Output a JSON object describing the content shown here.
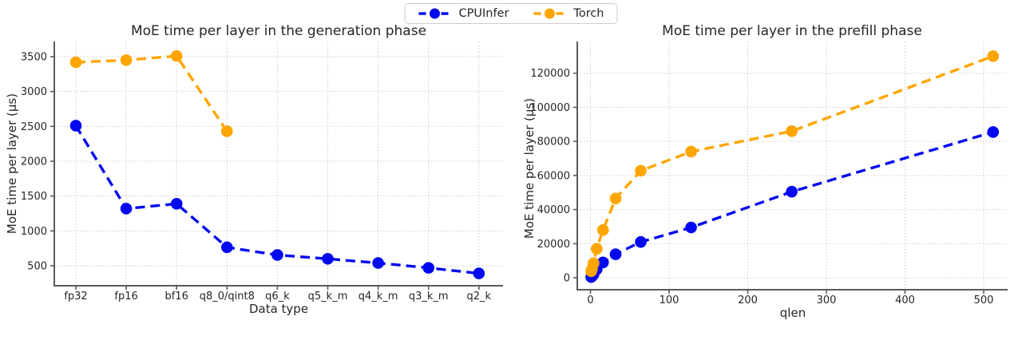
{
  "figure": {
    "background": "#ffffff",
    "text_color": "#262626",
    "grid_color": "#c9c9c9",
    "spine_color": "#5a5a5a"
  },
  "legend": {
    "position": "figure-top-center",
    "orientation": "horizontal"
  },
  "chart_data": [
    {
      "type": "line",
      "title": "MoE time per layer in the generation phase",
      "xlabel": "Data type",
      "ylabel": "MoE time per layer (µs)",
      "line_style": "dashed",
      "marker": "circle",
      "grid": "dotted",
      "categories": [
        "fp32",
        "fp16",
        "bf16",
        "q8_0/qint8",
        "q6_k",
        "q5_k_m",
        "q4_k_m",
        "q3_k_m",
        "q2_k"
      ],
      "yticks": [
        500,
        1000,
        1500,
        2000,
        2500,
        3000,
        3500
      ],
      "ylim": [
        215,
        3720
      ],
      "series": [
        {
          "name": "CPUInfer",
          "color": "#0008f0",
          "values": [
            2510,
            1320,
            1390,
            765,
            655,
            600,
            540,
            470,
            390
          ]
        },
        {
          "name": "Torch",
          "color": "#ffa500",
          "values": [
            3420,
            3450,
            3510,
            2430,
            null,
            null,
            null,
            null,
            null
          ]
        }
      ]
    },
    {
      "type": "line",
      "title": "MoE time per layer in the prefill phase",
      "xlabel": "qlen",
      "ylabel": "MoE time per layer (µs)",
      "line_style": "dashed",
      "marker": "circle",
      "grid": "dotted",
      "x": [
        1,
        2,
        4,
        8,
        16,
        32,
        64,
        128,
        256,
        512
      ],
      "xticks": [
        0,
        100,
        200,
        300,
        400,
        500
      ],
      "yticks": [
        0,
        20000,
        40000,
        60000,
        80000,
        100000,
        120000
      ],
      "xlim": [
        -17,
        530
      ],
      "ylim": [
        -7000,
        138600
      ],
      "series": [
        {
          "name": "CPUInfer",
          "color": "#0008f0",
          "values": [
            400,
            900,
            2000,
            5000,
            9000,
            13800,
            21000,
            29500,
            50500,
            85500
          ]
        },
        {
          "name": "Torch",
          "color": "#ffa500",
          "values": [
            3800,
            5200,
            8500,
            17000,
            28000,
            46500,
            62800,
            74000,
            86000,
            130000
          ]
        }
      ]
    }
  ]
}
